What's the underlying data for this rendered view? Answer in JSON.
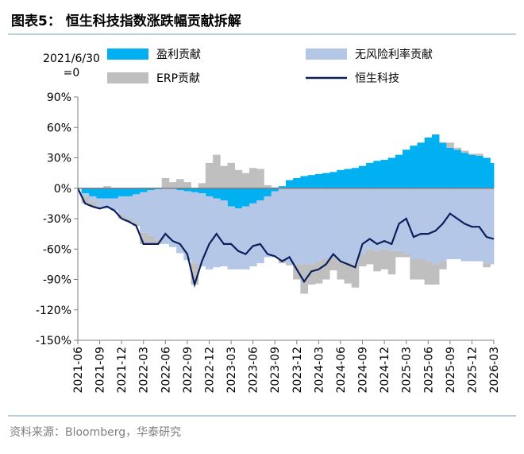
{
  "chart_data": {
    "type": "stacked_area_line",
    "title": "图表5：  恒生科技指数涨跌幅贡献拆解",
    "annotation": "2021/6/30\n=0",
    "source": "资料来源：Bloomberg，华泰研究",
    "categories": [
      "2021-06",
      null,
      null,
      "2021-09",
      null,
      null,
      "2021-12",
      null,
      null,
      "2022-03",
      null,
      null,
      "2022-06",
      null,
      null,
      "2022-09",
      null,
      null,
      "2022-12",
      null,
      null,
      "2023-03",
      null,
      null,
      "2023-06",
      null,
      null,
      "2023-09",
      null,
      null,
      "2023-12",
      null,
      null,
      "2024-03",
      null,
      null,
      "2024-06",
      null,
      null,
      "2024-09",
      null,
      null,
      "2024-12",
      null,
      null,
      "2025-03",
      null,
      null,
      "2025-06",
      null,
      null,
      "2025-09",
      null,
      null,
      "2025-12",
      null,
      null,
      "2026-03"
    ],
    "series": [
      {
        "name": "盈利贡献",
        "kind": "area",
        "color": "#00b0f0",
        "values": [
          0,
          -5,
          -8,
          -10,
          -10,
          -10,
          -8,
          -8,
          -6,
          -4,
          -2,
          -1,
          0,
          0,
          -2,
          -3,
          -4,
          -5,
          -8,
          -10,
          -12,
          -18,
          -20,
          -18,
          -15,
          -12,
          -8,
          -3,
          2,
          8,
          10,
          12,
          13,
          14,
          15,
          16,
          18,
          19,
          20,
          22,
          25,
          27,
          28,
          30,
          33,
          38,
          42,
          45,
          50,
          53,
          45,
          40,
          38,
          35,
          33,
          32,
          30,
          25
        ]
      },
      {
        "name": "无风险利率贡献",
        "kind": "area",
        "color": "#b4c7e7",
        "values": [
          0,
          -3,
          -5,
          -8,
          -10,
          -12,
          -18,
          -22,
          -28,
          -40,
          -45,
          -50,
          -55,
          -58,
          -62,
          -68,
          -70,
          -72,
          -72,
          -68,
          -65,
          -62,
          -60,
          -62,
          -62,
          -62,
          -60,
          -65,
          -70,
          -75,
          -75,
          -75,
          -75,
          -72,
          -70,
          -68,
          -72,
          -73,
          -75,
          -65,
          -60,
          -62,
          -60,
          -62,
          -62,
          -65,
          -70,
          -70,
          -72,
          -75,
          -72,
          -70,
          -70,
          -72,
          -72,
          -72,
          -74,
          -75
        ]
      },
      {
        "name": "ERP贡献",
        "kind": "area",
        "color": "#bfbfbf",
        "values": [
          0,
          -7,
          -5,
          -2,
          2,
          0,
          -4,
          -3,
          -3,
          -11,
          -8,
          -4,
          10,
          6,
          9,
          6,
          -21,
          5,
          25,
          33,
          22,
          25,
          18,
          15,
          20,
          19,
          3,
          1,
          -4,
          -1,
          -15,
          -29,
          -20,
          -22,
          -20,
          -13,
          -18,
          -21,
          -23,
          -12,
          -15,
          -20,
          -20,
          -23,
          -6,
          -3,
          -20,
          -20,
          -23,
          -20,
          -8,
          5,
          2,
          2,
          1,
          2,
          -4,
          0
        ]
      },
      {
        "name": "恒生科技",
        "kind": "line",
        "color": "#0b1f5c",
        "values": [
          0,
          -15,
          -18,
          -20,
          -18,
          -22,
          -30,
          -33,
          -37,
          -55,
          -55,
          -55,
          -45,
          -52,
          -55,
          -65,
          -95,
          -72,
          -55,
          -45,
          -55,
          -55,
          -62,
          -65,
          -57,
          -55,
          -65,
          -67,
          -72,
          -68,
          -80,
          -92,
          -82,
          -80,
          -75,
          -65,
          -72,
          -75,
          -78,
          -55,
          -50,
          -55,
          -52,
          -55,
          -35,
          -30,
          -48,
          -45,
          -45,
          -42,
          -35,
          -25,
          -30,
          -35,
          -38,
          -38,
          -48,
          -50
        ]
      }
    ],
    "ylim": [
      -150,
      90
    ],
    "yticks": [
      {
        "value": 90,
        "label": "90%"
      },
      {
        "value": 60,
        "label": "60%"
      },
      {
        "value": 30,
        "label": "30%"
      },
      {
        "value": 0,
        "label": "0%"
      },
      {
        "value": -30,
        "label": "-30%"
      },
      {
        "value": -60,
        "label": "-60%"
      },
      {
        "value": -90,
        "label": "-90%"
      },
      {
        "value": -120,
        "label": "-120%"
      },
      {
        "value": -150,
        "label": "-150%"
      }
    ]
  }
}
